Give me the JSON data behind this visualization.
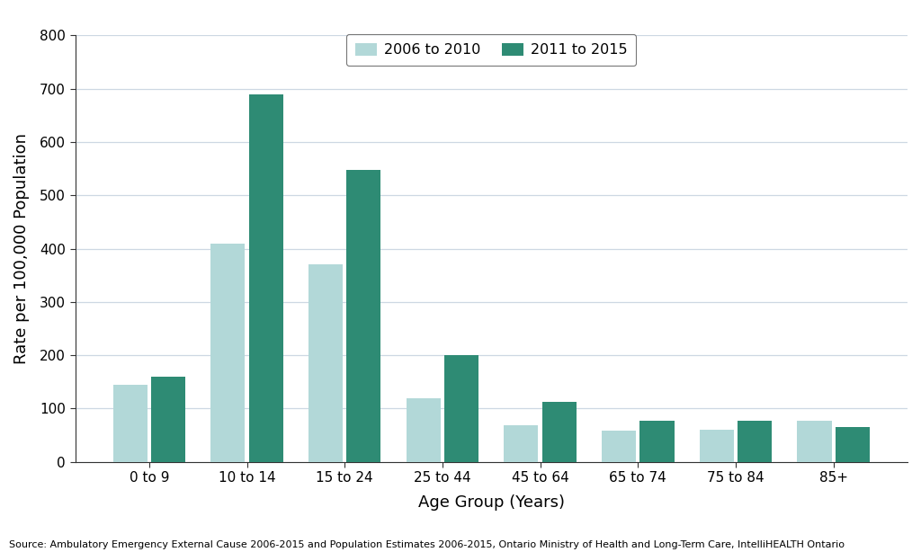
{
  "categories": [
    "0 to 9",
    "10 to 14",
    "15 to 24",
    "25 to 44",
    "45 to 64",
    "65 to 74",
    "75 to 84",
    "85+"
  ],
  "values_2006_2010": [
    145,
    410,
    370,
    120,
    68,
    58,
    60,
    78
  ],
  "values_2011_2015": [
    160,
    690,
    548,
    200,
    113,
    78,
    78,
    65
  ],
  "color_2006_2010": "#b2d8d8",
  "color_2011_2015": "#2e8b74",
  "ylabel": "Rate per 100,000 Population",
  "xlabel": "Age Group (Years)",
  "legend_label_1": "2006 to 2010",
  "legend_label_2": "2011 to 2015",
  "ylim": [
    0,
    800
  ],
  "yticks": [
    0,
    100,
    200,
    300,
    400,
    500,
    600,
    700,
    800
  ],
  "source_text": "Source: Ambulatory Emergency External Cause 2006-2015 and Population Estimates 2006-2015, Ontario Ministry of Health and Long-Term Care, IntelliHEALTH Ontario",
  "background_color": "#ffffff",
  "grid_color": "#cdd8e3",
  "bar_width": 0.35,
  "bar_gap": 0.04
}
